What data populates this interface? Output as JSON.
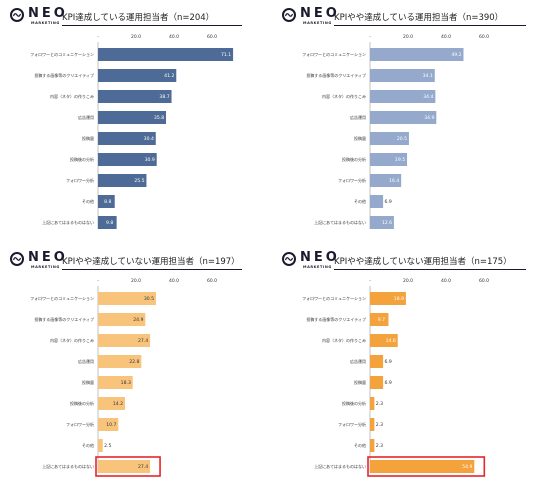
{
  "brand": {
    "name": "NEO",
    "sub": "MARKETING"
  },
  "chart_data": [
    {
      "type": "bar",
      "title": "KPI達成している運用担当者（n=204）",
      "categories": [
        "フォロワーとのコミュニケーション",
        "投稿する画像等のクリエイティブ",
        "内容（ネタ）の作りこみ",
        "広告運用",
        "投稿量",
        "投稿後の分析",
        "フォロワー分析",
        "その他",
        "上記にあてはまるものはない"
      ],
      "values": [
        71.1,
        41.2,
        38.7,
        35.8,
        30.4,
        30.9,
        25.5,
        8.8,
        9.8
      ],
      "value_labels": [
        "71.1",
        "41.2",
        "38.7",
        "35.8",
        "30.4",
        "30.9",
        "25.5",
        "8.8",
        "9.8"
      ],
      "xticks": [
        "-",
        "20.0",
        "40.0",
        "60.0"
      ],
      "xlim": [
        0,
        80
      ],
      "color": "#4e6a96",
      "label_color": "#ffffff",
      "highlight_index": null
    },
    {
      "type": "bar",
      "title": "KPIやや達成している運用担当者（n=390）",
      "categories": [
        "フォロワーとのコミュニケーション",
        "投稿する画像等のクリエイティブ",
        "内容（ネタ）の作りこみ",
        "広告運用",
        "投稿量",
        "投稿後の分析",
        "フォロワー分析",
        "その他",
        "上記にあてはまるものはない"
      ],
      "values": [
        49.2,
        34.1,
        34.4,
        34.9,
        20.5,
        19.5,
        16.4,
        6.9,
        12.6
      ],
      "value_labels": [
        "49.2",
        "34.1",
        "34.4",
        "34.9",
        "20.5",
        "19.5",
        "16.4",
        "6.9",
        "12.6"
      ],
      "xticks": [
        "-",
        "20.0",
        "40.0",
        "60.0"
      ],
      "xlim": [
        0,
        80
      ],
      "color": "#94a9cc",
      "label_color": "#ffffff",
      "highlight_index": null
    },
    {
      "type": "bar",
      "title": "KPIやや達成していない運用担当者（n=197）",
      "categories": [
        "フォロワーとのコミュニケーション",
        "投稿する画像等のクリエイティブ",
        "内容（ネタ）の作りこみ",
        "広告運用",
        "投稿量",
        "投稿後の分析",
        "フォロワー分析",
        "その他",
        "上記にあてはまるものはない"
      ],
      "values": [
        30.5,
        24.9,
        27.4,
        22.8,
        18.3,
        14.2,
        10.7,
        2.5,
        27.4
      ],
      "value_labels": [
        "30.5",
        "24.9",
        "27.4",
        "22.8",
        "18.3",
        "14.2",
        "10.7",
        "2.5",
        "27.4"
      ],
      "xticks": [
        "-",
        "20.0",
        "40.0",
        "60.0"
      ],
      "xlim": [
        0,
        80
      ],
      "color": "#f8c47c",
      "label_color": "#333333",
      "highlight_index": 8
    },
    {
      "type": "bar",
      "title": "KPIやや達成していない運用担当者（n=175）",
      "categories": [
        "フォロワーとのコミュニケーション",
        "投稿する画像等のクリエイティブ",
        "内容（ネタ）の作りこみ",
        "広告運用",
        "投稿量",
        "投稿後の分析",
        "フォロワー分析",
        "その他",
        "上記にあてはまるものはない"
      ],
      "values": [
        18.9,
        9.7,
        14.6,
        6.9,
        6.9,
        2.3,
        2.3,
        2.3,
        54.9
      ],
      "value_labels": [
        "18.9",
        "9.7",
        "14.6",
        "6.9",
        "6.9",
        "2.3",
        "2.3",
        "2.3",
        "54.9"
      ],
      "xticks": [
        "-",
        "20.0",
        "40.0",
        "60.0"
      ],
      "xlim": [
        0,
        80
      ],
      "color": "#f4a23c",
      "label_color": "#ffffff",
      "highlight_index": 8
    }
  ]
}
